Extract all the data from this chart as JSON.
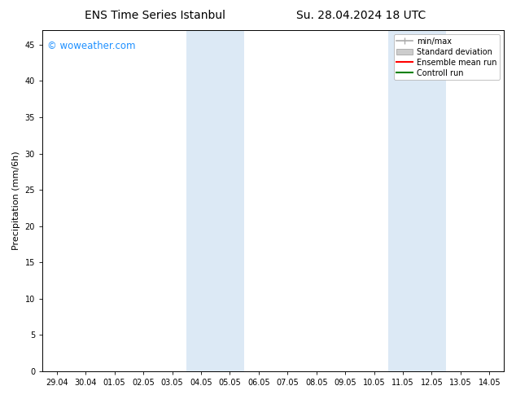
{
  "title": "ENS Time Series Istanbul",
  "title2": "Su. 28.04.2024 18 UTC",
  "ylabel": "Precipitation (mm/6h)",
  "background_color": "#ffffff",
  "plot_bg_color": "#ffffff",
  "ylim": [
    0,
    47
  ],
  "yticks": [
    0,
    5,
    10,
    15,
    20,
    25,
    30,
    35,
    40,
    45
  ],
  "xtick_labels": [
    "29.04",
    "30.04",
    "01.05",
    "02.05",
    "03.05",
    "04.05",
    "05.05",
    "06.05",
    "07.05",
    "08.05",
    "09.05",
    "10.05",
    "11.05",
    "12.05",
    "13.05",
    "14.05"
  ],
  "xlim": [
    0,
    15
  ],
  "shade_bands": [
    {
      "x_start": 5,
      "x_end": 7
    },
    {
      "x_start": 12,
      "x_end": 14
    }
  ],
  "shade_color": "#dce9f5",
  "watermark_text": "© woweather.com",
  "watermark_color": "#1e90ff",
  "legend_entries": [
    {
      "label": "min/max",
      "color": "#aaaaaa",
      "style": "minmax"
    },
    {
      "label": "Standard deviation",
      "color": "#cccccc",
      "style": "stddev"
    },
    {
      "label": "Ensemble mean run",
      "color": "#ff0000",
      "style": "line"
    },
    {
      "label": "Controll run",
      "color": "#008000",
      "style": "line"
    }
  ],
  "title_fontsize": 10,
  "tick_fontsize": 7,
  "ylabel_fontsize": 8,
  "watermark_fontsize": 8.5,
  "legend_fontsize": 7,
  "spine_color": "#000000"
}
